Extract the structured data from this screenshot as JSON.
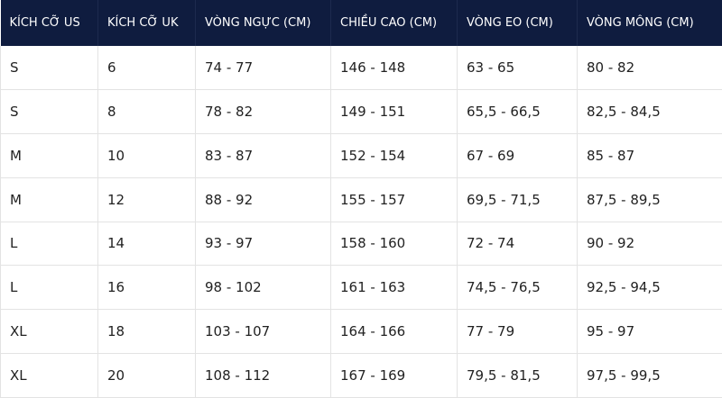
{
  "table": {
    "headers": [
      "KÍCH CỠ US",
      "KÍCH CỠ UK",
      "VÒNG NGỰC (CM)",
      "CHIỀU CAO (CM)",
      "VÒNG EO (CM)",
      "VÒNG MÔNG (CM)"
    ],
    "rows": [
      [
        "S",
        "6",
        "74 - 77",
        "146 - 148",
        "63 - 65",
        "80 - 82"
      ],
      [
        "S",
        "8",
        "78 - 82",
        "149 - 151",
        "65,5 - 66,5",
        "82,5 - 84,5"
      ],
      [
        "M",
        "10",
        "83 - 87",
        "152 - 154",
        "67 - 69",
        "85 - 87"
      ],
      [
        "M",
        "12",
        "88 - 92",
        "155 - 157",
        "69,5 - 71,5",
        "87,5 - 89,5"
      ],
      [
        "L",
        "14",
        "93 - 97",
        "158 - 160",
        "72 - 74",
        "90 - 92"
      ],
      [
        "L",
        "16",
        "98 - 102",
        "161 - 163",
        "74,5 - 76,5",
        "92,5 - 94,5"
      ],
      [
        "XL",
        "18",
        "103 - 107",
        "164 - 166",
        "77 - 79",
        "95 - 97"
      ],
      [
        "XL",
        "20",
        "108 - 112",
        "167 - 169",
        "79,5 - 81,5",
        "97,5 - 99,5"
      ]
    ]
  },
  "colors": {
    "header_bg": "#0f1c3f",
    "header_text": "#ffffff",
    "border": "#e3e3e3",
    "body_text": "#222222"
  }
}
